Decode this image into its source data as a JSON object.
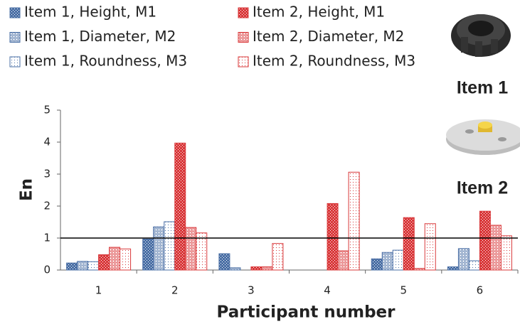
{
  "chart_data": {
    "type": "bar",
    "x_label": "Participant number",
    "y_label": "En",
    "categories": [
      "1",
      "2",
      "3",
      "4",
      "5",
      "6"
    ],
    "series": [
      {
        "name": "Item 1, Height, M1",
        "color": "#4a6fa5",
        "pattern": "solid",
        "values": [
          0.22,
          0.97,
          0.51,
          0,
          0.35,
          0.1
        ]
      },
      {
        "name": "Item 1, Diameter, M2",
        "color": "#4a6fa5",
        "pattern": "crosshatch",
        "values": [
          0.27,
          1.35,
          0.07,
          0,
          0.55,
          0.67
        ]
      },
      {
        "name": "Item 1, Roundness, M3",
        "color": "#4a6fa5",
        "pattern": "dots",
        "values": [
          0.26,
          1.51,
          0,
          0,
          0.62,
          0.29
        ]
      },
      {
        "name": "Item 2, Height, M1",
        "color": "#d9383a",
        "pattern": "solid",
        "values": [
          0.48,
          3.97,
          0.1,
          2.08,
          1.64,
          1.84
        ]
      },
      {
        "name": "Item 2, Diameter, M2",
        "color": "#d9383a",
        "pattern": "crosshatch",
        "values": [
          0.71,
          1.33,
          0.1,
          0.6,
          0.05,
          1.4
        ]
      },
      {
        "name": "Item 2, Roundness, M3",
        "color": "#d9383a",
        "pattern": "dots",
        "values": [
          0.66,
          1.16,
          0.83,
          3.06,
          1.45,
          1.07
        ]
      }
    ],
    "reference_line": 1,
    "ylim": [
      0,
      5
    ],
    "yticks": [
      0,
      1,
      2,
      3,
      4,
      5
    ],
    "annotations": [
      "Item 1",
      "Item 2"
    ]
  }
}
